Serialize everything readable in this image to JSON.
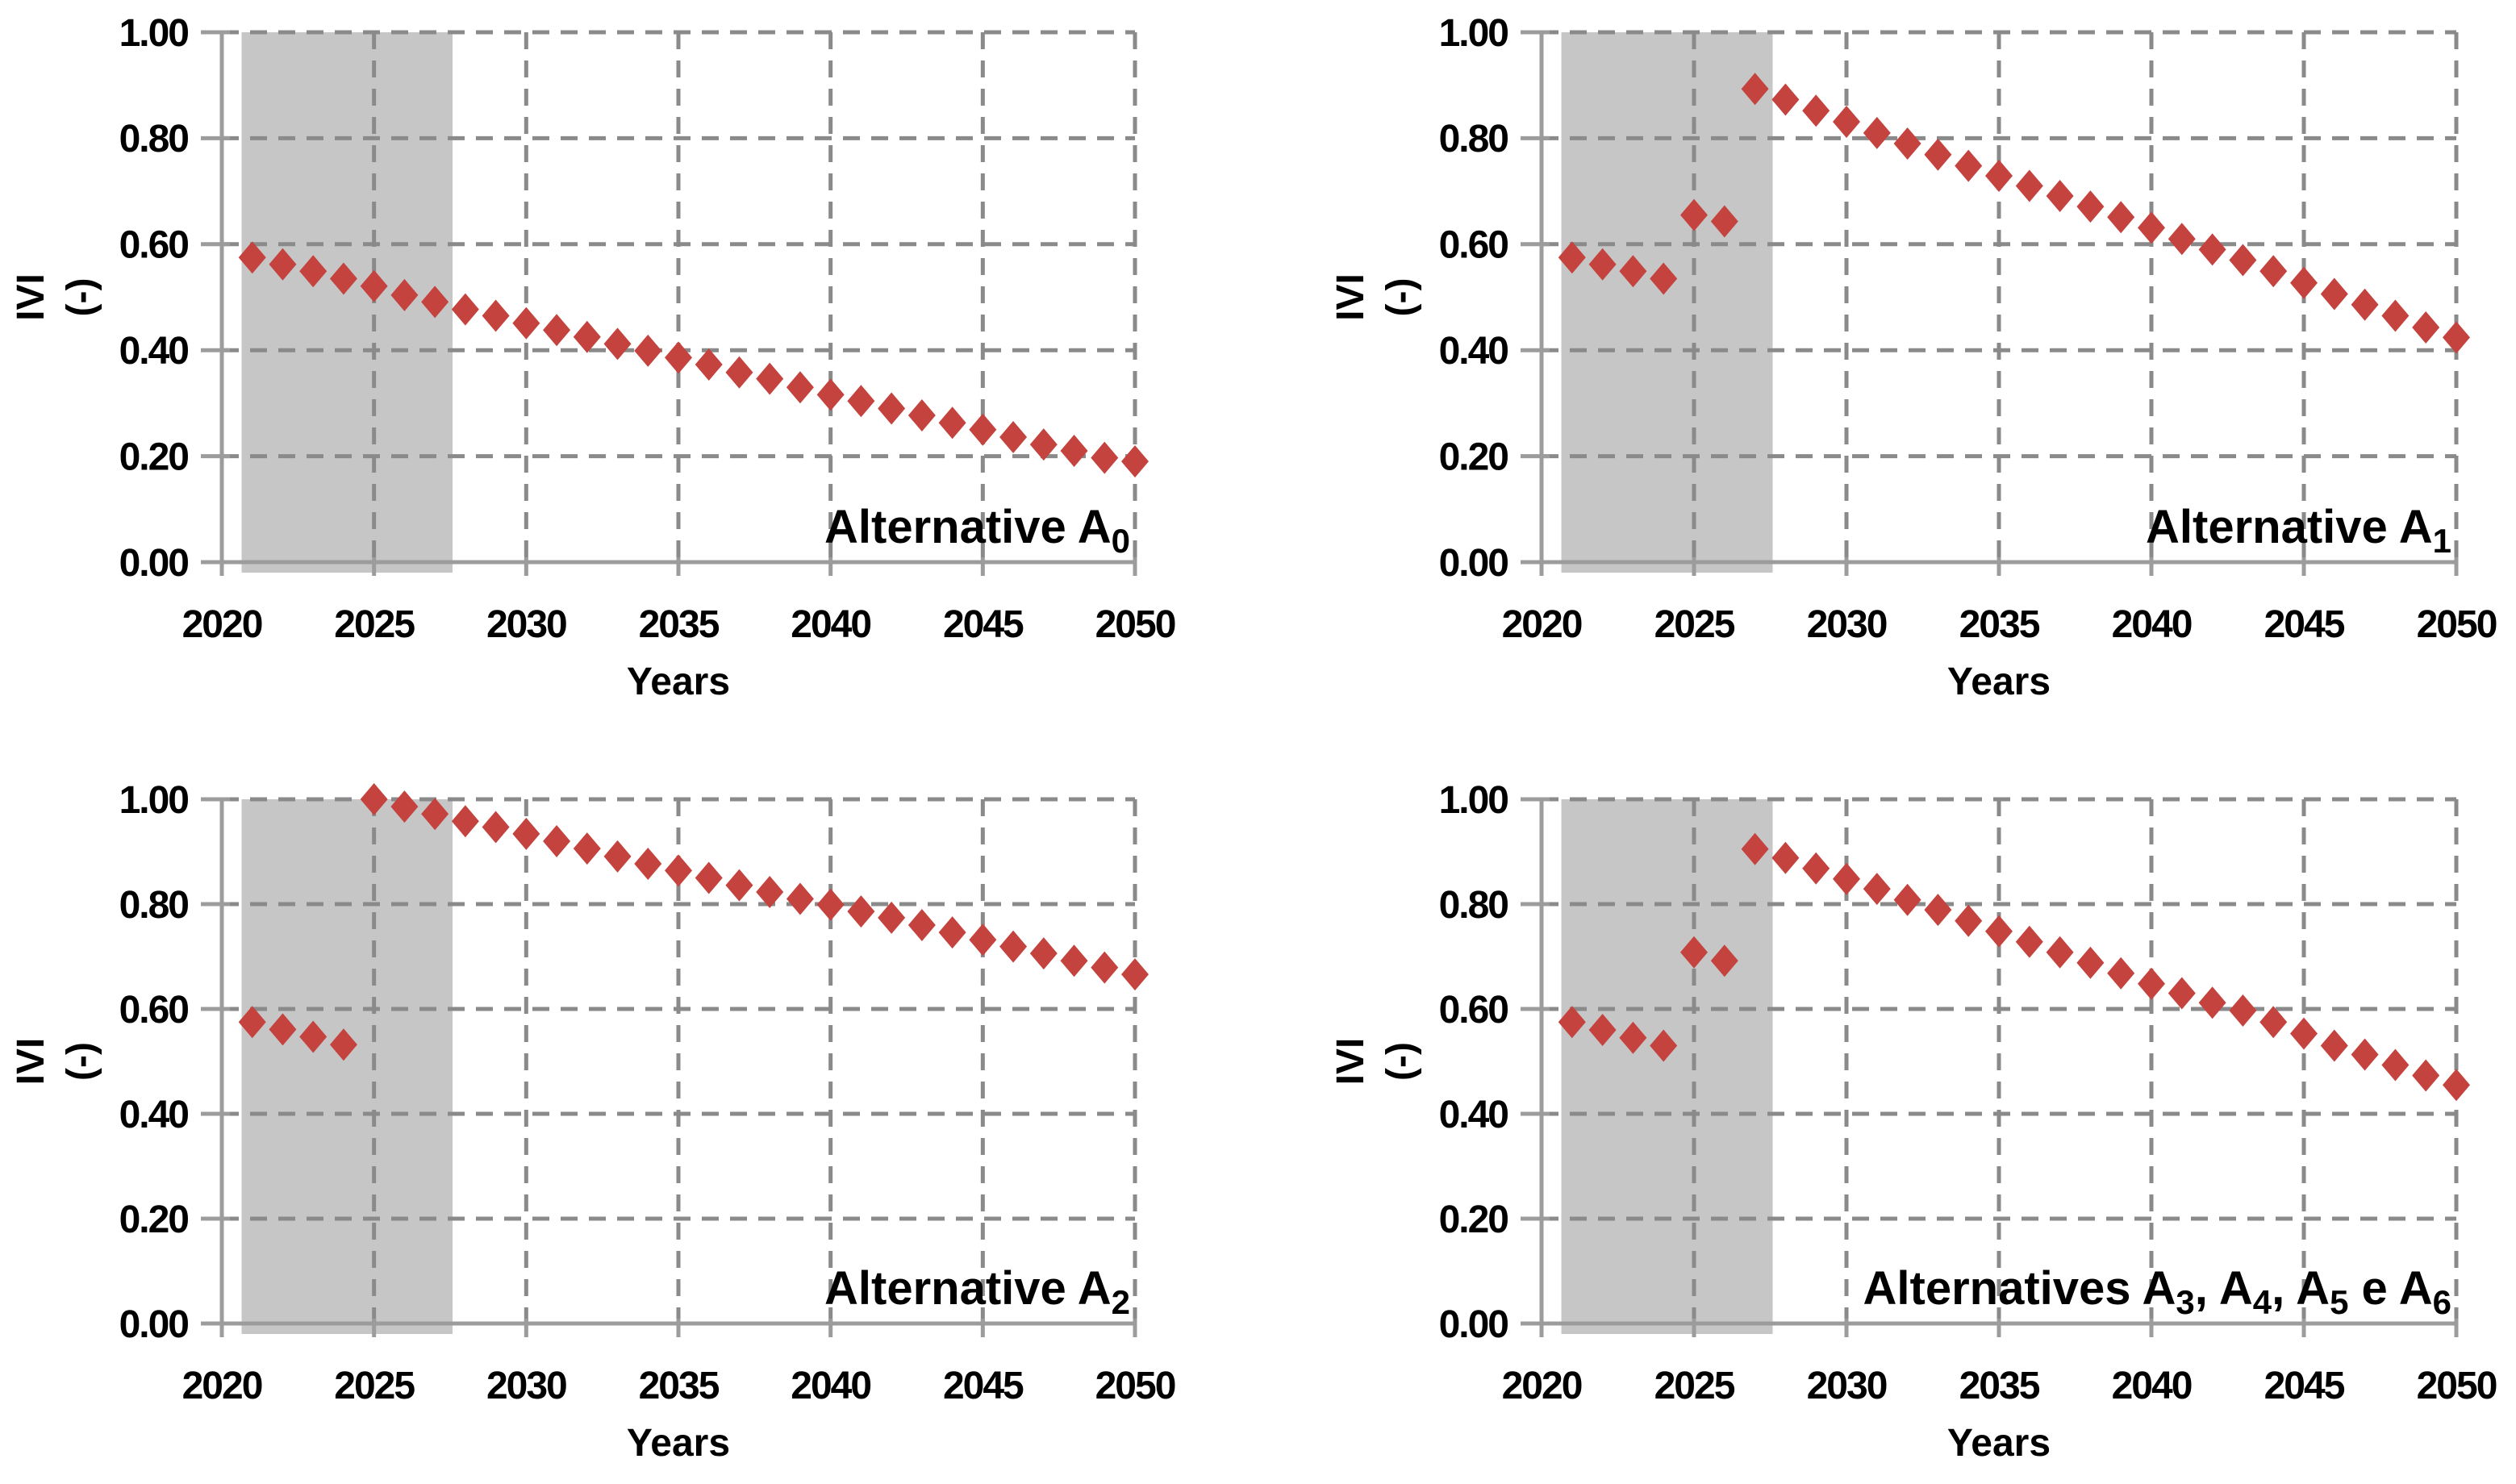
{
  "page": {
    "background": "#ffffff"
  },
  "style": {
    "marker_color": "#c5433f",
    "band_color": "#c6c6c6",
    "grid_color": "#8a8a8a",
    "axis_color": "#9c9c9c",
    "text_color": "#000000"
  },
  "chart_data": [
    {
      "type": "scatter",
      "marker": "diamond",
      "corner_label_text": "Alternative A0",
      "corner_label_segments": [
        {
          "t": "Alternative A"
        },
        {
          "t": "0",
          "sub": true
        }
      ],
      "xlabel": "Years",
      "ylabel": "IVI (-)",
      "ylabel_lines": [
        "IVI",
        "(-)"
      ],
      "xlim": [
        2020,
        2050
      ],
      "ylim": [
        0.0,
        1.0
      ],
      "x_ticks": [
        "2020",
        "2025",
        "2030",
        "2035",
        "2040",
        "2045",
        "2050"
      ],
      "y_ticks": [
        "0.00",
        "0.20",
        "0.40",
        "0.60",
        "0.80",
        "1.00"
      ],
      "grid": "dashed",
      "shaded_region": {
        "x_start": 2020.65,
        "x_end": 2027.58
      },
      "x": [
        2021,
        2022,
        2023,
        2024,
        2025,
        2026,
        2027,
        2028,
        2029,
        2030,
        2031,
        2032,
        2033,
        2034,
        2035,
        2036,
        2037,
        2038,
        2039,
        2040,
        2041,
        2042,
        2043,
        2044,
        2045,
        2046,
        2047,
        2048,
        2049,
        2050
      ],
      "y": [
        0.575,
        0.562,
        0.549,
        0.535,
        0.521,
        0.504,
        0.491,
        0.477,
        0.465,
        0.451,
        0.438,
        0.425,
        0.412,
        0.399,
        0.386,
        0.373,
        0.358,
        0.346,
        0.33,
        0.316,
        0.304,
        0.29,
        0.277,
        0.263,
        0.25,
        0.236,
        0.222,
        0.21,
        0.197,
        0.19
      ]
    },
    {
      "type": "scatter",
      "marker": "diamond",
      "corner_label_text": "Alternative A1",
      "corner_label_segments": [
        {
          "t": "Alternative A"
        },
        {
          "t": "1",
          "sub": true
        }
      ],
      "xlabel": "Years",
      "ylabel": "IVI (-)",
      "ylabel_lines": [
        "IVI",
        "(-)"
      ],
      "xlim": [
        2020,
        2050
      ],
      "ylim": [
        0.0,
        1.0
      ],
      "x_ticks": [
        "2020",
        "2025",
        "2030",
        "2035",
        "2040",
        "2045",
        "2050"
      ],
      "y_ticks": [
        "0.00",
        "0.20",
        "0.40",
        "0.60",
        "0.80",
        "1.00"
      ],
      "grid": "dashed",
      "shaded_region": {
        "x_start": 2020.65,
        "x_end": 2027.58
      },
      "x": [
        2021,
        2022,
        2023,
        2024,
        2025,
        2026,
        2027,
        2028,
        2029,
        2030,
        2031,
        2032,
        2033,
        2034,
        2035,
        2036,
        2037,
        2038,
        2039,
        2040,
        2041,
        2042,
        2043,
        2044,
        2045,
        2046,
        2047,
        2048,
        2049,
        2050
      ],
      "y": [
        0.575,
        0.562,
        0.549,
        0.535,
        0.655,
        0.643,
        0.893,
        0.873,
        0.852,
        0.831,
        0.81,
        0.79,
        0.769,
        0.748,
        0.729,
        0.71,
        0.691,
        0.671,
        0.651,
        0.631,
        0.61,
        0.59,
        0.57,
        0.549,
        0.527,
        0.506,
        0.486,
        0.465,
        0.443,
        0.424
      ]
    },
    {
      "type": "scatter",
      "marker": "diamond",
      "corner_label_text": "Alternative A2",
      "corner_label_segments": [
        {
          "t": "Alternative A"
        },
        {
          "t": "2",
          "sub": true
        }
      ],
      "xlabel": "Years",
      "ylabel": "IVI (-)",
      "ylabel_lines": [
        "IVI",
        "(-)"
      ],
      "xlim": [
        2020,
        2050
      ],
      "ylim": [
        0.0,
        1.0
      ],
      "x_ticks": [
        "2020",
        "2025",
        "2030",
        "2035",
        "2040",
        "2045",
        "2050"
      ],
      "y_ticks": [
        "0.00",
        "0.20",
        "0.40",
        "0.60",
        "0.80",
        "1.00"
      ],
      "grid": "dashed",
      "shaded_region": {
        "x_start": 2020.65,
        "x_end": 2027.58
      },
      "x": [
        2021,
        2022,
        2023,
        2024,
        2025,
        2026,
        2027,
        2028,
        2029,
        2030,
        2031,
        2032,
        2033,
        2034,
        2035,
        2036,
        2037,
        2038,
        2039,
        2040,
        2041,
        2042,
        2043,
        2044,
        2045,
        2046,
        2047,
        2048,
        2049,
        2050
      ],
      "y": [
        0.575,
        0.561,
        0.547,
        0.532,
        1.0,
        0.986,
        0.972,
        0.958,
        0.947,
        0.934,
        0.92,
        0.906,
        0.891,
        0.877,
        0.864,
        0.85,
        0.836,
        0.823,
        0.81,
        0.799,
        0.786,
        0.774,
        0.76,
        0.746,
        0.732,
        0.719,
        0.706,
        0.692,
        0.679,
        0.666
      ]
    },
    {
      "type": "scatter",
      "marker": "diamond",
      "corner_label_text": "Alternatives A3, A4, A5 e A6",
      "corner_label_segments": [
        {
          "t": "Alternatives A"
        },
        {
          "t": "3",
          "sub": true
        },
        {
          "t": ", A"
        },
        {
          "t": "4",
          "sub": true
        },
        {
          "t": ", A"
        },
        {
          "t": "5",
          "sub": true
        },
        {
          "t": " e A"
        },
        {
          "t": "6",
          "sub": true
        }
      ],
      "xlabel": "Years",
      "ylabel": "IVI (-)",
      "ylabel_lines": [
        "IVI",
        "(-)"
      ],
      "xlim": [
        2020,
        2050
      ],
      "ylim": [
        0.0,
        1.0
      ],
      "x_ticks": [
        "2020",
        "2025",
        "2030",
        "2035",
        "2040",
        "2045",
        "2050"
      ],
      "y_ticks": [
        "0.00",
        "0.20",
        "0.40",
        "0.60",
        "0.80",
        "1.00"
      ],
      "grid": "dashed",
      "shaded_region": {
        "x_start": 2020.65,
        "x_end": 2027.58
      },
      "x": [
        2021,
        2022,
        2023,
        2024,
        2025,
        2026,
        2027,
        2028,
        2029,
        2030,
        2031,
        2032,
        2033,
        2034,
        2035,
        2036,
        2037,
        2038,
        2039,
        2040,
        2041,
        2042,
        2043,
        2044,
        2045,
        2046,
        2047,
        2048,
        2049,
        2050
      ],
      "y": [
        0.575,
        0.56,
        0.545,
        0.53,
        0.708,
        0.692,
        0.905,
        0.888,
        0.868,
        0.848,
        0.829,
        0.808,
        0.789,
        0.768,
        0.748,
        0.728,
        0.708,
        0.688,
        0.668,
        0.648,
        0.63,
        0.612,
        0.597,
        0.575,
        0.553,
        0.53,
        0.513,
        0.493,
        0.473,
        0.455
      ]
    }
  ]
}
